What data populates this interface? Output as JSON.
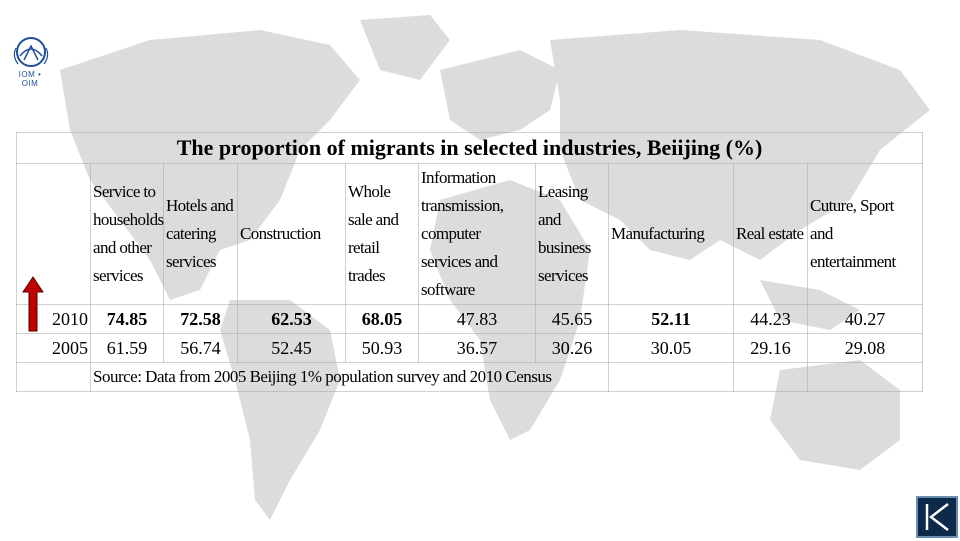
{
  "logo": {
    "caption": "IOM • OIM"
  },
  "table": {
    "title": "The proportion of migrants in selected industries, Beiijing (%)",
    "headers": [
      "Service to households and other services",
      "Hotels and catering services",
      "Construction",
      "Whole sale and retail trades",
      "Information transmission, computer services and software",
      "Leasing and business services",
      "Manufacturing",
      "Real estate",
      "Cuture, Sport and entertainment"
    ],
    "rows": [
      {
        "year": "2010",
        "values": [
          "74.85",
          "72.58",
          "62.53",
          "68.05",
          "47.83",
          "45.65",
          "52.11",
          "44.23",
          "40.27"
        ]
      },
      {
        "year": "2005",
        "values": [
          "61.59",
          "56.74",
          "52.45",
          "50.93",
          "36.57",
          "30.26",
          "30.05",
          "29.16",
          "29.08"
        ]
      }
    ],
    "source": "Source: Data from 2005 Beijing 1% population survey and 2010 Census"
  },
  "colors": {
    "arrow": "#c00000",
    "nav_button": "#0d2a4a",
    "map": "#d9d9d9"
  },
  "icons": {
    "trend": "up-arrow-icon",
    "nav": "first-slide-icon"
  }
}
